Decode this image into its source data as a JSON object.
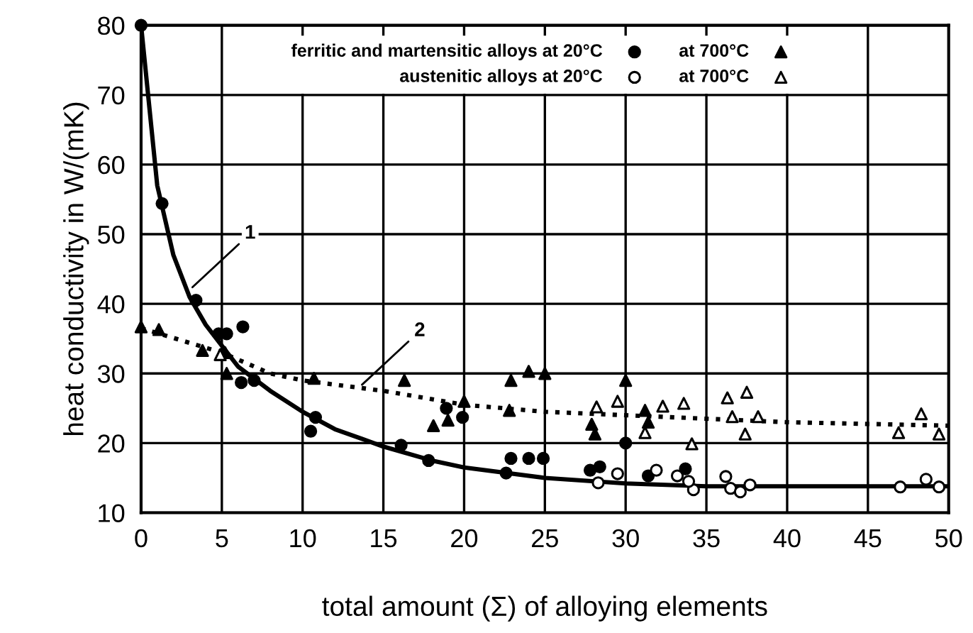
{
  "chart_data": {
    "type": "scatter",
    "xlabel": "total amount (Σ) of alloying elements",
    "ylabel": "heat conductivity in W/(mK)",
    "xlim": [
      0,
      50
    ],
    "ylim": [
      10,
      80
    ],
    "xticks": [
      0,
      5,
      10,
      15,
      20,
      25,
      30,
      35,
      40,
      45,
      50
    ],
    "yticks": [
      10,
      20,
      30,
      40,
      50,
      60,
      70,
      80
    ],
    "grid": true,
    "legend": "top",
    "series": [
      {
        "name": "ferritic and martensitic alloys at 20°C",
        "color": "#000000",
        "marker": "circle",
        "x": [
          0,
          1.3,
          3.4,
          4.8,
          5.3,
          6.3,
          6.2,
          7.0,
          10.8,
          10.5,
          16.1,
          17.8,
          18.9,
          19.9,
          22.6,
          22.9,
          24.0,
          24.9,
          27.8,
          28.4,
          30.0,
          31.4,
          33.7
        ],
        "values": [
          80,
          54.4,
          40.5,
          35.7,
          35.7,
          36.7,
          28.7,
          29,
          23.7,
          21.7,
          19.7,
          17.5,
          25,
          23.7,
          15.7,
          17.8,
          17.8,
          17.8,
          16.1,
          16.6,
          20,
          15.3,
          16.3
        ]
      },
      {
        "name": "austenitic alloys at 20°C",
        "color": "#ffffff",
        "marker": "circle",
        "x": [
          28.3,
          29.5,
          31.9,
          33.2,
          34.2,
          33.9,
          36.2,
          36.5,
          37.1,
          37.7,
          47.0,
          48.6,
          49.4
        ],
        "values": [
          14.3,
          15.6,
          16.1,
          15.3,
          13.3,
          14.5,
          15.2,
          13.5,
          13,
          14,
          13.7,
          14.8,
          13.7
        ]
      },
      {
        "name": "at 700°C",
        "color": "#000000",
        "marker": "triangle",
        "x": [
          0,
          1.1,
          3.8,
          5.2,
          5.3,
          10.7,
          16.3,
          18.1,
          19.0,
          20.0,
          22.9,
          22.8,
          24.0,
          25,
          30.0,
          27.9,
          28.1,
          31.2,
          31.4
        ],
        "values": [
          36.7,
          36.3,
          33.3,
          33,
          30,
          29.3,
          29,
          22.5,
          23.3,
          26,
          29,
          24.7,
          30.3,
          30,
          29,
          22.7,
          21.3,
          24.7,
          23
        ]
      },
      {
        "name": "at 700°C",
        "color": "#ffffff",
        "marker": "triangle",
        "x": [
          4.9,
          28.2,
          29.5,
          31.2,
          32.3,
          33.6,
          34.1,
          36.3,
          37.5,
          36.6,
          38.2,
          37.4,
          48.3,
          46.9,
          49.4
        ],
        "values": [
          32.7,
          25.2,
          26,
          21.5,
          25.3,
          25.7,
          19.9,
          26.5,
          27.3,
          23.8,
          23.8,
          21.3,
          24.2,
          21.5,
          21.3
        ]
      },
      {
        "type": "line",
        "color": "#000000",
        "marker": "none",
        "line_style": "solid",
        "x": [
          0,
          1,
          2,
          3,
          4,
          5,
          6,
          8,
          10,
          12,
          15,
          18,
          20,
          25,
          30,
          35,
          40,
          50
        ],
        "values": [
          80,
          57,
          47,
          41,
          37,
          34,
          31,
          27.5,
          24.5,
          22,
          19.5,
          17.5,
          16.5,
          15,
          14.2,
          13.8,
          13.8,
          13.8
        ]
      },
      {
        "type": "line",
        "color": "#000000",
        "marker": "none",
        "line_style": "dotted",
        "x": [
          0,
          5,
          8,
          10,
          15,
          20,
          25,
          30,
          35,
          40,
          50
        ],
        "values": [
          36.5,
          33,
          30,
          29,
          27.5,
          25.5,
          24.5,
          24,
          23.5,
          23,
          22.5
        ]
      }
    ],
    "annotations": [
      {
        "text": "1",
        "x": 3,
        "y": 42
      },
      {
        "text": "2",
        "x": 13.5,
        "y": 28
      }
    ]
  }
}
